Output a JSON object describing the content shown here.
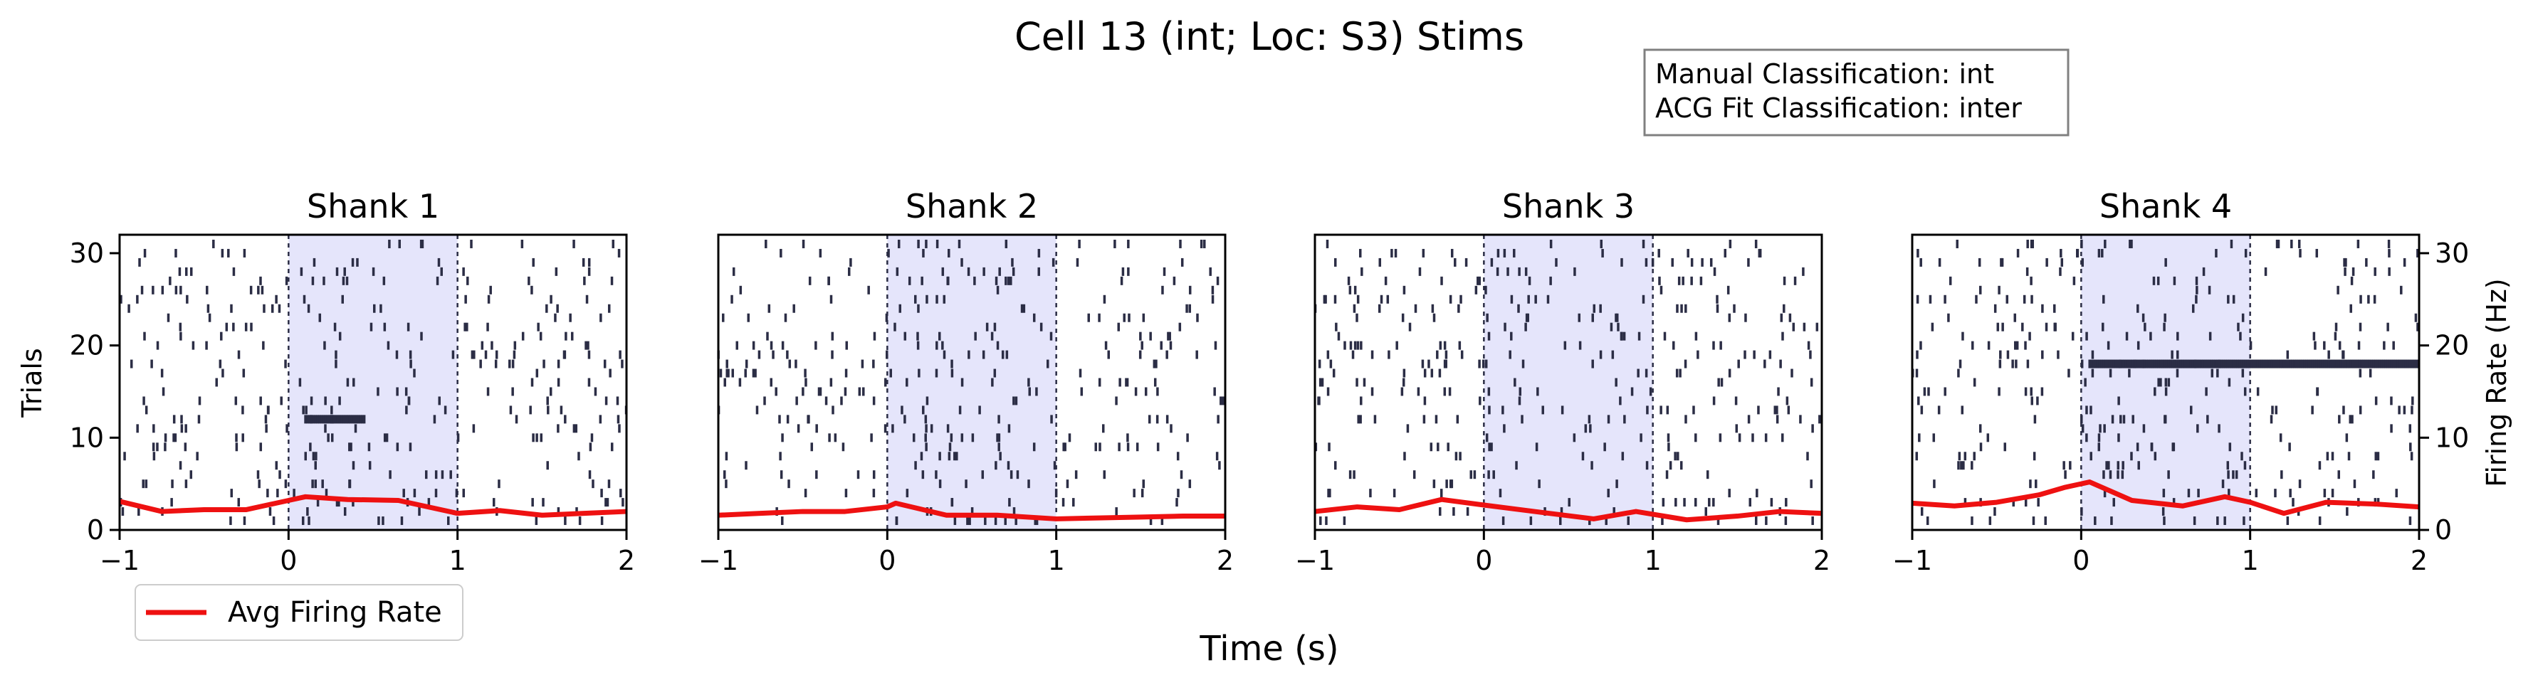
{
  "figure": {
    "suptitle": "Cell 13 (int; Loc: S3) Stims",
    "annotation_lines": [
      "Manual Classification: int",
      "ACG Fit Classification: inter"
    ],
    "xlabel": "Time (s)",
    "left_ylabel": "Trials",
    "right_ylabel": "Firing Rate (Hz)",
    "legend_label": "Avg Firing Rate"
  },
  "colors": {
    "spike": "#2b2d45",
    "stim_shade": "#e5e5fb",
    "rate_line": "#ee1111",
    "dashed_line": "#2b2d45"
  },
  "chart_data": [
    {
      "type": "raster",
      "title": "Shank 1",
      "xlim": [
        -1,
        2
      ],
      "ylim": [
        0,
        32
      ],
      "xticks": [
        -1,
        0,
        1,
        2
      ],
      "yticks": [
        0,
        10,
        20,
        30
      ],
      "stim_window": [
        0,
        1
      ],
      "trials": 31,
      "dense_trial": 12,
      "dense_window": [
        0.1,
        0.45
      ],
      "rate_series": {
        "name": "Avg Firing Rate",
        "x": [
          -1,
          -0.75,
          -0.5,
          -0.25,
          0,
          0.1,
          0.35,
          0.65,
          1.0,
          1.25,
          1.5,
          1.75,
          2.0
        ],
        "y": [
          3.1,
          2.0,
          2.2,
          2.2,
          3.2,
          3.6,
          3.3,
          3.2,
          1.8,
          2.1,
          1.6,
          1.8,
          2.0
        ]
      }
    },
    {
      "type": "raster",
      "title": "Shank 2",
      "xlim": [
        -1,
        2
      ],
      "ylim": [
        0,
        32
      ],
      "xticks": [
        -1,
        0,
        1,
        2
      ],
      "yticks": [
        0,
        10,
        20,
        30
      ],
      "stim_window": [
        0,
        1
      ],
      "trials": 31,
      "rate_series": {
        "name": "Avg Firing Rate",
        "x": [
          -1,
          -0.75,
          -0.5,
          -0.25,
          0,
          0.05,
          0.35,
          0.65,
          1.0,
          1.25,
          1.5,
          1.75,
          2.0
        ],
        "y": [
          1.6,
          1.8,
          2.0,
          2.0,
          2.5,
          2.9,
          1.6,
          1.6,
          1.2,
          1.3,
          1.4,
          1.5,
          1.5
        ]
      }
    },
    {
      "type": "raster",
      "title": "Shank 3",
      "xlim": [
        -1,
        2
      ],
      "ylim": [
        0,
        32
      ],
      "xticks": [
        -1,
        0,
        1,
        2
      ],
      "yticks": [
        0,
        10,
        20,
        30
      ],
      "stim_window": [
        0,
        1
      ],
      "trials": 31,
      "rate_series": {
        "name": "Avg Firing Rate",
        "x": [
          -1,
          -0.75,
          -0.5,
          -0.25,
          0,
          0.3,
          0.65,
          0.9,
          1.2,
          1.5,
          1.75,
          2.0
        ],
        "y": [
          2.0,
          2.5,
          2.2,
          3.3,
          2.7,
          2.0,
          1.2,
          2.0,
          1.1,
          1.5,
          2.0,
          1.8
        ]
      }
    },
    {
      "type": "raster",
      "title": "Shank 4",
      "xlim": [
        -1,
        2
      ],
      "ylim": [
        0,
        32
      ],
      "xticks": [
        -1,
        0,
        1,
        2
      ],
      "yticks": [
        0,
        10,
        20,
        30
      ],
      "stim_window": [
        0,
        1
      ],
      "trials": 31,
      "dense_trial": 18,
      "dense_window": [
        0.05,
        2.0
      ],
      "rate_series": {
        "name": "Avg Firing Rate",
        "x": [
          -1,
          -0.75,
          -0.5,
          -0.25,
          -0.1,
          0.05,
          0.3,
          0.6,
          0.85,
          1.0,
          1.2,
          1.45,
          1.75,
          2.0
        ],
        "y": [
          2.9,
          2.6,
          3.0,
          3.8,
          4.6,
          5.2,
          3.2,
          2.6,
          3.6,
          3.0,
          1.8,
          3.0,
          2.8,
          2.5
        ]
      }
    }
  ],
  "right_axis": {
    "ylim": [
      0,
      32
    ],
    "yticks": [
      0,
      10,
      20,
      30
    ]
  }
}
